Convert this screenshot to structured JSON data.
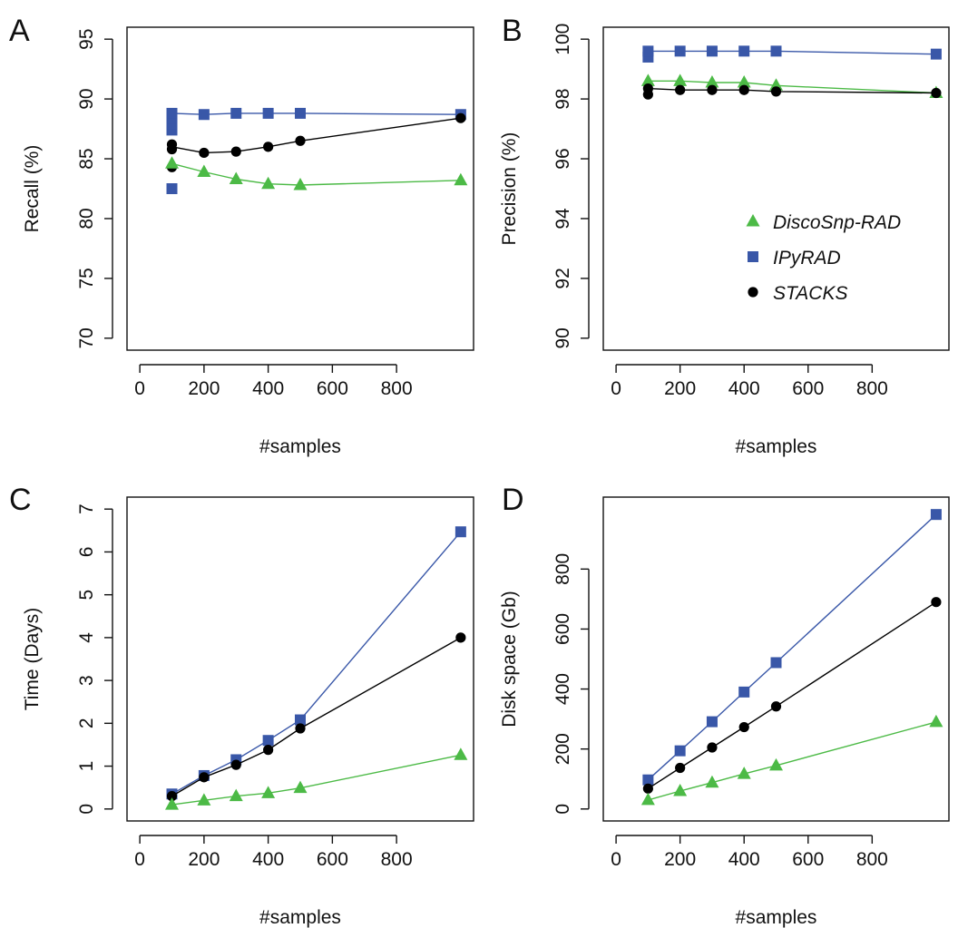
{
  "colors": {
    "DiscoSnp-RAD": "#4cba46",
    "IPyRAD": "#3957a8",
    "STACKS": "#000000"
  },
  "legend": {
    "entries": [
      {
        "label": "DiscoSnp-RAD",
        "marker": "triangle"
      },
      {
        "label": "IPyRAD",
        "marker": "square"
      },
      {
        "label": "STACKS",
        "marker": "circle"
      }
    ],
    "panel": "B",
    "placement": "inside plot, lower-right"
  },
  "chart_data": [
    {
      "panel": "A",
      "type": "line",
      "xlabel": "#samples",
      "ylabel": "Recall (%)",
      "xlim": [
        0,
        1000
      ],
      "ylim": [
        70,
        95
      ],
      "xticks": [
        0,
        200,
        400,
        600,
        800
      ],
      "yticks": [
        70,
        75,
        80,
        85,
        90,
        95
      ],
      "grid": false,
      "series": [
        {
          "name": "IPyRAD",
          "marker": "square",
          "points": [
            [
              100,
              82.5
            ],
            [
              100,
              87.4
            ],
            [
              100,
              87.9
            ],
            [
              100,
              88.4
            ],
            [
              100,
              88.8
            ],
            [
              200,
              88.7
            ],
            [
              300,
              88.8
            ],
            [
              400,
              88.8
            ],
            [
              500,
              88.8
            ],
            [
              1000,
              88.7
            ]
          ],
          "line": [
            [
              100,
              88.8
            ],
            [
              200,
              88.7
            ],
            [
              300,
              88.8
            ],
            [
              400,
              88.8
            ],
            [
              500,
              88.8
            ],
            [
              1000,
              88.7
            ]
          ]
        },
        {
          "name": "STACKS",
          "marker": "circle",
          "points": [
            [
              100,
              84.3
            ],
            [
              100,
              85.8
            ],
            [
              100,
              86.2
            ],
            [
              200,
              85.5
            ],
            [
              300,
              85.6
            ],
            [
              400,
              86.0
            ],
            [
              500,
              86.5
            ],
            [
              1000,
              88.4
            ]
          ],
          "line": [
            [
              100,
              86.0
            ],
            [
              200,
              85.5
            ],
            [
              300,
              85.6
            ],
            [
              400,
              86.0
            ],
            [
              500,
              86.5
            ],
            [
              1000,
              88.4
            ]
          ]
        },
        {
          "name": "DiscoSnp-RAD",
          "marker": "triangle",
          "points": [
            [
              100,
              84.6
            ],
            [
              200,
              83.9
            ],
            [
              300,
              83.3
            ],
            [
              400,
              82.9
            ],
            [
              500,
              82.8
            ],
            [
              1000,
              83.2
            ]
          ],
          "line": [
            [
              100,
              84.6
            ],
            [
              200,
              83.9
            ],
            [
              300,
              83.3
            ],
            [
              400,
              82.9
            ],
            [
              500,
              82.8
            ],
            [
              1000,
              83.2
            ]
          ]
        }
      ]
    },
    {
      "panel": "B",
      "type": "line",
      "xlabel": "#samples",
      "ylabel": "Precision (%)",
      "xlim": [
        0,
        1000
      ],
      "ylim": [
        90,
        100
      ],
      "xticks": [
        0,
        200,
        400,
        600,
        800
      ],
      "yticks": [
        90,
        92,
        94,
        96,
        98,
        100
      ],
      "grid": false,
      "series": [
        {
          "name": "IPyRAD",
          "marker": "square",
          "points": [
            [
              100,
              99.4
            ],
            [
              100,
              99.6
            ],
            [
              200,
              99.6
            ],
            [
              300,
              99.6
            ],
            [
              400,
              99.6
            ],
            [
              500,
              99.6
            ],
            [
              1000,
              99.5
            ]
          ],
          "line": [
            [
              100,
              99.6
            ],
            [
              200,
              99.6
            ],
            [
              300,
              99.6
            ],
            [
              400,
              99.6
            ],
            [
              500,
              99.6
            ],
            [
              1000,
              99.5
            ]
          ]
        },
        {
          "name": "DiscoSnp-RAD",
          "marker": "triangle",
          "points": [
            [
              100,
              98.6
            ],
            [
              200,
              98.6
            ],
            [
              300,
              98.55
            ],
            [
              400,
              98.55
            ],
            [
              500,
              98.45
            ],
            [
              1000,
              98.2
            ]
          ],
          "line": [
            [
              100,
              98.6
            ],
            [
              200,
              98.6
            ],
            [
              300,
              98.55
            ],
            [
              400,
              98.55
            ],
            [
              500,
              98.45
            ],
            [
              1000,
              98.2
            ]
          ]
        },
        {
          "name": "STACKS",
          "marker": "circle",
          "points": [
            [
              100,
              98.15
            ],
            [
              100,
              98.35
            ],
            [
              200,
              98.3
            ],
            [
              300,
              98.3
            ],
            [
              400,
              98.3
            ],
            [
              500,
              98.25
            ],
            [
              1000,
              98.2
            ]
          ],
          "line": [
            [
              100,
              98.35
            ],
            [
              200,
              98.3
            ],
            [
              300,
              98.3
            ],
            [
              400,
              98.3
            ],
            [
              500,
              98.25
            ],
            [
              1000,
              98.2
            ]
          ]
        }
      ]
    },
    {
      "panel": "C",
      "type": "line",
      "xlabel": "#samples",
      "ylabel": "Time (Days)",
      "xlim": [
        0,
        1000
      ],
      "ylim": [
        0,
        7
      ],
      "xticks": [
        0,
        200,
        400,
        600,
        800
      ],
      "yticks": [
        0,
        1,
        2,
        3,
        4,
        5,
        6,
        7
      ],
      "grid": false,
      "series": [
        {
          "name": "IPyRAD",
          "marker": "square",
          "points": [
            [
              100,
              0.35
            ],
            [
              200,
              0.78
            ],
            [
              300,
              1.15
            ],
            [
              400,
              1.6
            ],
            [
              500,
              2.08
            ],
            [
              1000,
              6.47
            ]
          ],
          "line": [
            [
              100,
              0.35
            ],
            [
              200,
              0.78
            ],
            [
              300,
              1.15
            ],
            [
              400,
              1.6
            ],
            [
              500,
              2.08
            ],
            [
              1000,
              6.47
            ]
          ]
        },
        {
          "name": "STACKS",
          "marker": "circle",
          "points": [
            [
              100,
              0.3
            ],
            [
              200,
              0.74
            ],
            [
              300,
              1.03
            ],
            [
              400,
              1.38
            ],
            [
              500,
              1.88
            ],
            [
              1000,
              4.0
            ]
          ],
          "line": [
            [
              100,
              0.3
            ],
            [
              200,
              0.74
            ],
            [
              300,
              1.03
            ],
            [
              400,
              1.38
            ],
            [
              500,
              1.88
            ],
            [
              1000,
              4.0
            ]
          ]
        },
        {
          "name": "DiscoSnp-RAD",
          "marker": "triangle",
          "points": [
            [
              100,
              0.1
            ],
            [
              200,
              0.2
            ],
            [
              300,
              0.3
            ],
            [
              400,
              0.37
            ],
            [
              500,
              0.49
            ],
            [
              1000,
              1.26
            ]
          ],
          "line": [
            [
              100,
              0.1
            ],
            [
              200,
              0.2
            ],
            [
              300,
              0.3
            ],
            [
              400,
              0.37
            ],
            [
              500,
              0.49
            ],
            [
              1000,
              1.26
            ]
          ]
        }
      ]
    },
    {
      "panel": "D",
      "type": "line",
      "xlabel": "#samples",
      "ylabel": "Disk space (Gb)",
      "xlim": [
        0,
        1000
      ],
      "ylim": [
        0,
        1000
      ],
      "xticks": [
        0,
        200,
        400,
        600,
        800
      ],
      "yticks": [
        0,
        200,
        400,
        600,
        800
      ],
      "grid": false,
      "series": [
        {
          "name": "IPyRAD",
          "marker": "square",
          "points": [
            [
              100,
              97
            ],
            [
              200,
              194
            ],
            [
              300,
              291
            ],
            [
              400,
              390
            ],
            [
              500,
              488
            ],
            [
              1000,
              982
            ]
          ],
          "line": [
            [
              100,
              97
            ],
            [
              200,
              194
            ],
            [
              300,
              291
            ],
            [
              400,
              390
            ],
            [
              500,
              488
            ],
            [
              1000,
              982
            ]
          ]
        },
        {
          "name": "STACKS",
          "marker": "circle",
          "points": [
            [
              100,
              68
            ],
            [
              200,
              137
            ],
            [
              300,
              205
            ],
            [
              400,
              273
            ],
            [
              500,
              342
            ],
            [
              1000,
              690
            ]
          ],
          "line": [
            [
              100,
              68
            ],
            [
              200,
              137
            ],
            [
              300,
              205
            ],
            [
              400,
              273
            ],
            [
              500,
              342
            ],
            [
              1000,
              690
            ]
          ]
        },
        {
          "name": "DiscoSnp-RAD",
          "marker": "triangle",
          "points": [
            [
              100,
              30
            ],
            [
              200,
              60
            ],
            [
              300,
              88
            ],
            [
              400,
              117
            ],
            [
              500,
              145
            ],
            [
              1000,
              290
            ]
          ],
          "line": [
            [
              100,
              30
            ],
            [
              200,
              60
            ],
            [
              300,
              88
            ],
            [
              400,
              117
            ],
            [
              500,
              145
            ],
            [
              1000,
              290
            ]
          ]
        }
      ]
    }
  ]
}
